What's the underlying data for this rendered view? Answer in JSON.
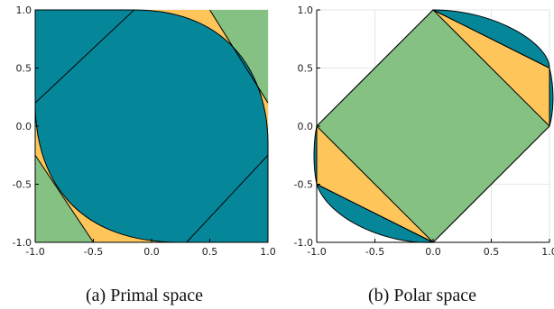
{
  "colors": {
    "teal": "#068799",
    "orange": "#fec65a",
    "green": "#85c182",
    "grid": "#e6e6e6",
    "frame": "#000000"
  },
  "chart_data": [
    {
      "type": "area",
      "caption": "(a) Primal space",
      "xlim": [
        -1.0,
        1.0
      ],
      "ylim": [
        -1.0,
        1.0
      ],
      "xticks": [
        "-1.0",
        "-0.5",
        "0.0",
        "0.5",
        "1.0"
      ],
      "yticks": [
        "-1.0",
        "-0.5",
        "0.0",
        "0.5",
        "1.0"
      ],
      "grid": true,
      "regions": [
        {
          "name": "",
          "color": "green",
          "kind": "square",
          "points": [
            [
              -1,
              -1
            ],
            [
              1,
              -1
            ],
            [
              1,
              1
            ],
            [
              -1,
              1
            ]
          ]
        },
        {
          "name": "",
          "color": "orange",
          "kind": "polygon",
          "points": [
            [
              -1,
              0.2
            ],
            [
              -1,
              -0.25
            ],
            [
              -0.5,
              -1
            ],
            [
              0.3,
              -1
            ],
            [
              1,
              -0.25
            ],
            [
              1,
              0.2
            ],
            [
              0.5,
              1
            ],
            [
              -0.15,
              1
            ]
          ]
        },
        {
          "name": "",
          "color": "teal",
          "kind": "lens",
          "points": [
            [
              -1,
              0.2
            ],
            [
              0.25,
              -1
            ],
            [
              1,
              -0.15
            ],
            [
              -0.15,
              1
            ]
          ]
        }
      ],
      "lines": [
        [
          [
            -1,
            0.2
          ],
          [
            -0.15,
            1
          ]
        ],
        [
          [
            -1,
            -0.25
          ],
          [
            -0.5,
            -1
          ]
        ],
        [
          [
            0.5,
            1
          ],
          [
            1,
            0.2
          ]
        ],
        [
          [
            0.3,
            -1
          ],
          [
            1,
            -0.25
          ]
        ]
      ]
    },
    {
      "type": "area",
      "caption": "(b) Polar space",
      "xlim": [
        -1.0,
        1.0
      ],
      "ylim": [
        -1.0,
        1.0
      ],
      "xticks": [
        "-1.0",
        "-0.5",
        "0.0",
        "0.5",
        "1.0"
      ],
      "yticks": [
        "-1.0",
        "-0.5",
        "0.0",
        "0.5",
        "1.0"
      ],
      "grid": true,
      "regions": [
        {
          "name": "",
          "color": "teal",
          "kind": "outer",
          "points": [
            [
              0,
              1
            ],
            [
              1,
              0
            ],
            [
              0,
              -1
            ],
            [
              -1,
              0
            ]
          ]
        },
        {
          "name": "",
          "color": "orange",
          "kind": "polygon",
          "points": [
            [
              0,
              1
            ],
            [
              1,
              0.5
            ],
            [
              1,
              0
            ],
            [
              -1,
              0
            ],
            [
              -1,
              -0.5
            ],
            [
              0,
              -1
            ]
          ]
        },
        {
          "name": "",
          "color": "green",
          "kind": "polygon",
          "points": [
            [
              0,
              1
            ],
            [
              1,
              0
            ],
            [
              0,
              -1
            ],
            [
              -1,
              0
            ]
          ]
        }
      ],
      "lines": [
        [
          [
            0,
            1
          ],
          [
            1,
            0.5
          ]
        ],
        [
          [
            -1,
            -0.5
          ],
          [
            0,
            -1
          ]
        ]
      ]
    }
  ]
}
